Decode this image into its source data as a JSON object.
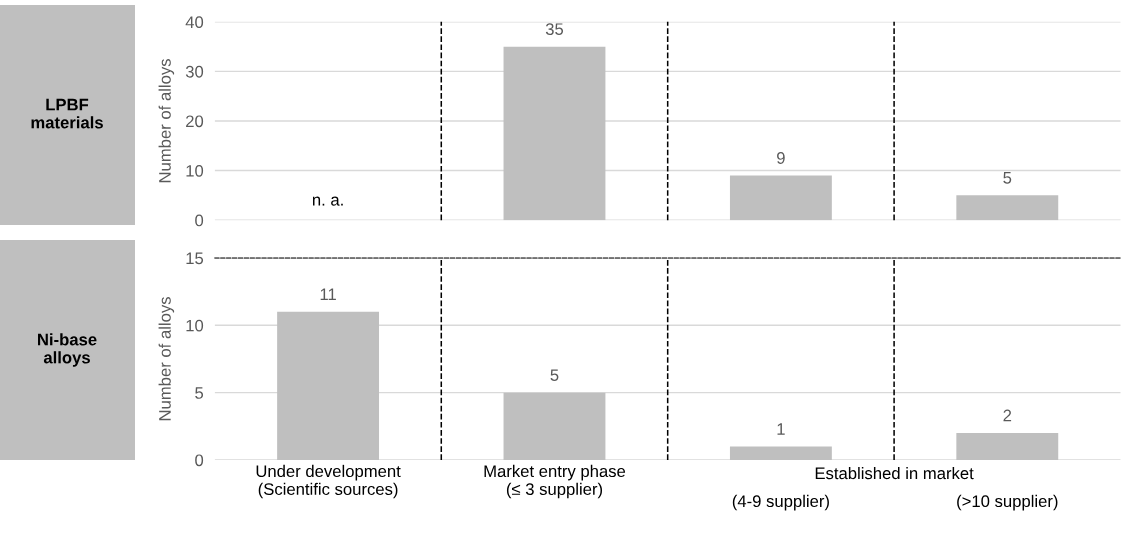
{
  "chart_data": [
    {
      "type": "bar",
      "title": "LPBF materials",
      "ylabel": "Number of alloys",
      "categories": [
        null,
        null,
        null,
        null
      ],
      "values": [
        null,
        35,
        9,
        5
      ],
      "color": "#bfbfbf",
      "data_labels": true,
      "ylim": [
        0,
        40
      ],
      "yticks": [
        0,
        10,
        20,
        30,
        40
      ],
      "grid": "y",
      "tick_labels": "y",
      "annotations": [
        "n. a."
      ]
    },
    {
      "type": "bar",
      "title": "Ni-base alloys",
      "ylabel": "Number of alloys",
      "categories": [
        "Under development\n(Scientific sources)",
        "Market entry phase\n(≤ 3 supplier)",
        "(4-9 supplier)",
        "(>10 supplier)"
      ],
      "values": [
        11,
        5,
        1,
        2
      ],
      "color": "#bfbfbf",
      "data_labels": true,
      "ylim": [
        0,
        15
      ],
      "yticks": [
        0,
        5,
        10,
        15
      ],
      "grid": "y",
      "annotations": [
        "Established in market"
      ]
    }
  ]
}
